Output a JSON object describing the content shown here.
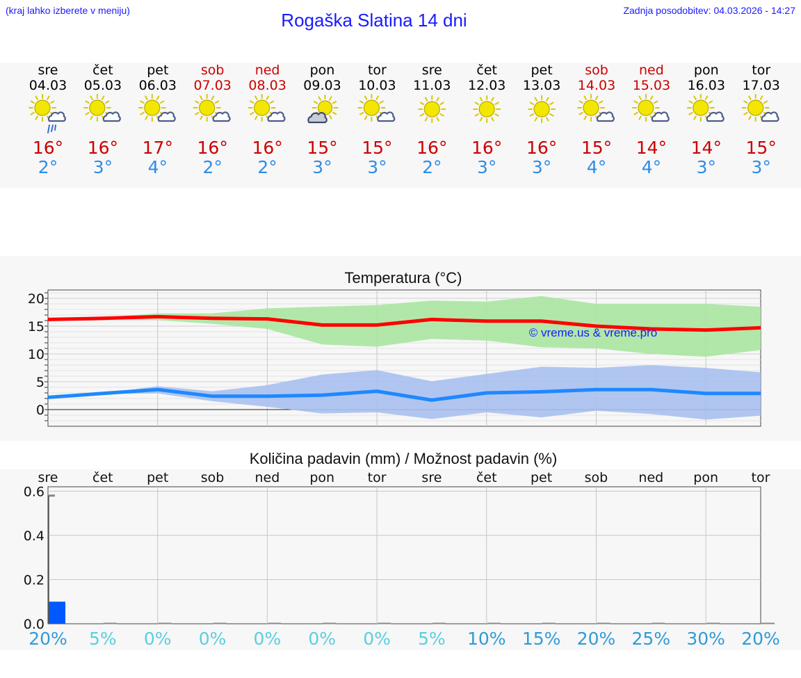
{
  "header": {
    "hint": "(kraj lahko izberete v meniju)",
    "title": "Rogaška Slatina 14 dni",
    "updated": "Zadnja posodobitev: 04.03.2026 - 14:27"
  },
  "colors": {
    "weekday": "#000000",
    "weekend": "#cc0000",
    "max_temp": "#cc0000",
    "min_temp": "#2e8ce6",
    "max_line": "#ff0000",
    "max_band": "#a8e6a0",
    "min_line": "#1e88ff",
    "min_band": "#a7c0f0",
    "precip_bar": "#0059ff",
    "watermark": "#1a1aff"
  },
  "days": [
    {
      "day": "sre",
      "date": "04.03",
      "weekend": false,
      "icon": "sun-cloud-rain-icon",
      "max": "16°",
      "min": "2°"
    },
    {
      "day": "čet",
      "date": "05.03",
      "weekend": false,
      "icon": "sun-cloud-icon",
      "max": "16°",
      "min": "3°"
    },
    {
      "day": "pet",
      "date": "06.03",
      "weekend": false,
      "icon": "sun-cloud-icon",
      "max": "17°",
      "min": "4°"
    },
    {
      "day": "sob",
      "date": "07.03",
      "weekend": true,
      "icon": "sun-cloud-icon",
      "max": "16°",
      "min": "2°"
    },
    {
      "day": "ned",
      "date": "08.03",
      "weekend": true,
      "icon": "sun-cloud-icon",
      "max": "16°",
      "min": "2°"
    },
    {
      "day": "pon",
      "date": "09.03",
      "weekend": false,
      "icon": "cloudy-sun-icon",
      "max": "15°",
      "min": "3°"
    },
    {
      "day": "tor",
      "date": "10.03",
      "weekend": false,
      "icon": "sun-cloud-icon",
      "max": "15°",
      "min": "3°"
    },
    {
      "day": "sre",
      "date": "11.03",
      "weekend": false,
      "icon": "sun-icon",
      "max": "16°",
      "min": "2°"
    },
    {
      "day": "čet",
      "date": "12.03",
      "weekend": false,
      "icon": "sun-icon",
      "max": "16°",
      "min": "3°"
    },
    {
      "day": "pet",
      "date": "13.03",
      "weekend": false,
      "icon": "sun-icon",
      "max": "16°",
      "min": "3°"
    },
    {
      "day": "sob",
      "date": "14.03",
      "weekend": true,
      "icon": "sun-cloud-icon",
      "max": "15°",
      "min": "4°"
    },
    {
      "day": "ned",
      "date": "15.03",
      "weekend": true,
      "icon": "sun-cloud-icon",
      "max": "14°",
      "min": "4°"
    },
    {
      "day": "pon",
      "date": "16.03",
      "weekend": false,
      "icon": "sun-cloud-icon",
      "max": "14°",
      "min": "3°"
    },
    {
      "day": "tor",
      "date": "17.03",
      "weekend": false,
      "icon": "sun-cloud-icon",
      "max": "15°",
      "min": "3°"
    }
  ],
  "chart_data": [
    {
      "type": "line",
      "title": "Temperatura (°C)",
      "watermark": "© vreme.us & vreme.pro",
      "ylim": [
        -3,
        21.5
      ],
      "yticks": [
        "20",
        "15",
        "10",
        "5",
        "0"
      ],
      "ytick_values": [
        20,
        15,
        10,
        5,
        0
      ],
      "x": [
        0,
        1,
        2,
        3,
        4,
        5,
        6,
        7,
        8,
        9,
        10,
        11,
        12,
        13
      ],
      "series": [
        {
          "name": "max",
          "values": [
            16.2,
            16.4,
            16.7,
            16.4,
            16.3,
            15.2,
            15.2,
            16.2,
            15.9,
            15.9,
            15.0,
            14.5,
            14.3,
            14.7
          ],
          "band_upper": [
            16.2,
            16.6,
            17.3,
            17.3,
            18.2,
            18.5,
            18.8,
            19.6,
            19.4,
            20.4,
            19.0,
            19.0,
            19.0,
            18.5
          ],
          "band_lower": [
            16.2,
            16.2,
            16.1,
            15.4,
            14.5,
            11.7,
            11.3,
            12.7,
            12.4,
            11.2,
            11.0,
            10.0,
            9.5,
            10.7
          ]
        },
        {
          "name": "min",
          "values": [
            2.2,
            2.9,
            3.6,
            2.4,
            2.4,
            2.6,
            3.3,
            1.7,
            3.0,
            3.2,
            3.6,
            3.6,
            2.9,
            2.9
          ],
          "band_upper": [
            2.2,
            2.9,
            4.2,
            3.3,
            4.4,
            6.3,
            7.1,
            5.1,
            6.4,
            7.7,
            7.5,
            8.0,
            7.5,
            6.7
          ],
          "band_lower": [
            2.2,
            2.8,
            2.9,
            1.5,
            0.5,
            -0.7,
            -0.5,
            -1.7,
            -0.5,
            -1.4,
            -0.2,
            -0.8,
            -1.8,
            -1.1
          ]
        }
      ]
    },
    {
      "type": "bar",
      "title": "Količina padavin (mm) / Možnost padavin (%)",
      "ylim": [
        0,
        0.62
      ],
      "yticks": [
        "0.6",
        "0.4",
        "0.2",
        "0.0"
      ],
      "ytick_values": [
        0.6,
        0.4,
        0.2,
        0.0
      ],
      "categories": [
        "sre",
        "čet",
        "pet",
        "sob",
        "ned",
        "pon",
        "tor",
        "sre",
        "čet",
        "pet",
        "sob",
        "ned",
        "pon",
        "tor"
      ],
      "values": [
        0.1,
        0,
        0,
        0,
        0,
        0,
        0,
        0,
        0,
        0,
        0,
        0,
        0,
        0
      ],
      "max_marker": 0.58,
      "probability": [
        "20%",
        "5%",
        "0%",
        "0%",
        "0%",
        "0%",
        "0%",
        "5%",
        "10%",
        "15%",
        "20%",
        "25%",
        "30%",
        "20%"
      ],
      "probability_values": [
        20,
        5,
        0,
        0,
        0,
        0,
        0,
        5,
        10,
        15,
        20,
        25,
        30,
        20
      ]
    }
  ]
}
